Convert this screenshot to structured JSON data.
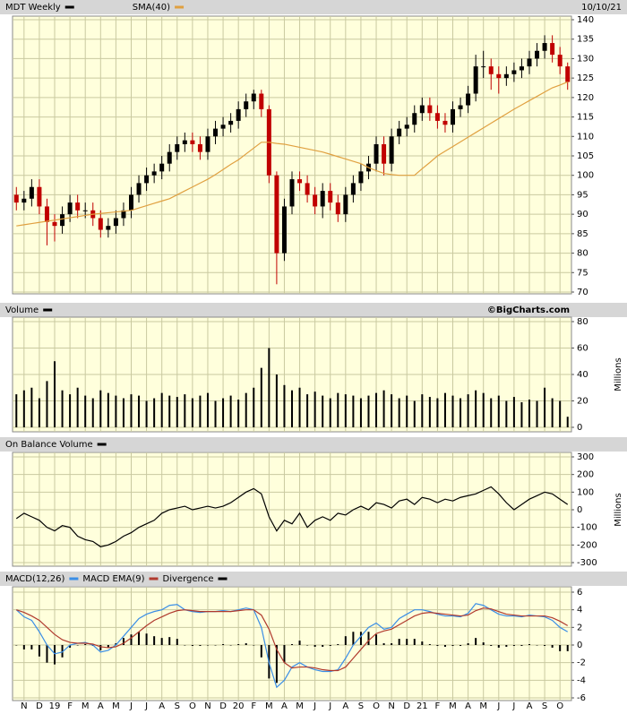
{
  "chart_data": [
    {
      "type": "candlestick",
      "date": "10/10/21",
      "ylim": [
        70,
        140
      ],
      "yticks": [
        70,
        75,
        80,
        85,
        90,
        95,
        100,
        105,
        110,
        115,
        120,
        125,
        130,
        135,
        140
      ],
      "grid": true,
      "series": [
        {
          "name": "MDT Weekly",
          "color": "#000000",
          "down_color": "#c00000",
          "open": [
            95,
            93,
            94,
            97,
            92,
            88,
            87,
            90,
            93,
            91,
            91,
            89,
            86,
            87,
            89,
            91,
            95,
            98,
            100,
            101,
            103,
            106,
            108,
            109,
            108,
            106,
            110,
            112,
            113,
            114,
            117,
            119,
            121,
            117,
            100,
            80,
            92,
            99,
            98,
            95,
            92,
            96,
            93,
            90,
            95,
            98,
            101,
            103,
            108,
            103,
            110,
            112,
            113,
            116,
            118,
            116,
            114,
            113,
            117,
            118,
            121,
            128,
            128,
            126,
            125,
            126,
            127,
            128,
            130,
            132,
            134,
            131,
            128
          ],
          "high": [
            97,
            96,
            99,
            99,
            94,
            90,
            92,
            95,
            95,
            93,
            93,
            91,
            89,
            91,
            93,
            97,
            100,
            102,
            103,
            105,
            108,
            110,
            111,
            111,
            110,
            112,
            114,
            115,
            116,
            119,
            121,
            122,
            122,
            118,
            101,
            94,
            101,
            101,
            100,
            97,
            98,
            98,
            95,
            97,
            100,
            103,
            105,
            110,
            110,
            112,
            114,
            115,
            118,
            120,
            120,
            118,
            116,
            119,
            120,
            123,
            131,
            132,
            130,
            128,
            128,
            129,
            130,
            132,
            134,
            136,
            136,
            133,
            129
          ],
          "low": [
            91,
            91,
            92,
            90,
            82,
            83,
            85,
            88,
            89,
            89,
            87,
            84,
            84,
            85,
            87,
            89,
            93,
            96,
            98,
            99,
            101,
            104,
            106,
            106,
            104,
            104,
            108,
            110,
            111,
            112,
            115,
            117,
            115,
            98,
            72,
            78,
            90,
            96,
            93,
            90,
            89,
            91,
            88,
            88,
            93,
            96,
            99,
            101,
            100,
            101,
            108,
            110,
            111,
            114,
            114,
            112,
            111,
            111,
            115,
            116,
            119,
            125,
            122,
            121,
            123,
            124,
            125,
            126,
            128,
            130,
            129,
            126,
            122
          ],
          "close": [
            93,
            94,
            97,
            92,
            88,
            87,
            90,
            93,
            91,
            91,
            89,
            86,
            87,
            89,
            91,
            95,
            98,
            100,
            101,
            103,
            106,
            108,
            109,
            108,
            106,
            110,
            112,
            113,
            114,
            117,
            119,
            121,
            117,
            100,
            80,
            92,
            99,
            98,
            95,
            92,
            96,
            93,
            90,
            95,
            98,
            101,
            103,
            108,
            103,
            110,
            112,
            113,
            116,
            118,
            116,
            114,
            113,
            117,
            118,
            121,
            128,
            128,
            126,
            125,
            126,
            127,
            128,
            130,
            132,
            134,
            131,
            128,
            124
          ]
        },
        {
          "name": "SMA(40)",
          "color": "#e0a040",
          "values": [
            87,
            87.3,
            87.6,
            87.9,
            88.2,
            88.5,
            88.8,
            89.1,
            89.4,
            89.7,
            90,
            90.2,
            90.4,
            90.6,
            90.8,
            91,
            91.6,
            92.2,
            92.8,
            93.4,
            94,
            95,
            96,
            97,
            98,
            99,
            100.2,
            101.5,
            102.8,
            104,
            105.5,
            107,
            108.5,
            108.5,
            108.2,
            108,
            107.6,
            107.2,
            106.8,
            106.4,
            106,
            105.4,
            104.8,
            104.2,
            103.6,
            103,
            102,
            101.2,
            100.5,
            100.2,
            100,
            100,
            100,
            101.7,
            103.3,
            105,
            106.2,
            107.4,
            108.6,
            109.8,
            111,
            112.2,
            113.4,
            114.6,
            115.8,
            117,
            118.1,
            119.2,
            120.3,
            121.4,
            122.5,
            123.2,
            124
          ]
        }
      ]
    },
    {
      "type": "bar",
      "source": "©BigCharts.com",
      "y_label": "Millions",
      "ylim": [
        0,
        80
      ],
      "yticks": [
        0,
        20,
        40,
        60,
        80
      ],
      "grid": true,
      "series": [
        {
          "name": "Volume",
          "color": "#000000",
          "values": [
            25,
            28,
            30,
            22,
            35,
            50,
            28,
            25,
            30,
            24,
            22,
            28,
            26,
            24,
            22,
            25,
            24,
            20,
            22,
            26,
            24,
            23,
            25,
            22,
            24,
            26,
            20,
            22,
            24,
            21,
            26,
            30,
            45,
            60,
            40,
            32,
            28,
            30,
            25,
            27,
            24,
            22,
            26,
            25,
            24,
            22,
            24,
            26,
            28,
            25,
            22,
            24,
            20,
            25,
            23,
            22,
            26,
            24,
            22,
            25,
            28,
            26,
            22,
            24,
            20,
            23,
            19,
            21,
            20,
            30,
            22,
            20,
            8
          ]
        }
      ]
    },
    {
      "type": "line",
      "y_label": "Millions",
      "ylim": [
        -300,
        300
      ],
      "yticks": [
        -300,
        -200,
        -100,
        0,
        100,
        200,
        300
      ],
      "grid": true,
      "series": [
        {
          "name": "On Balance Volume",
          "color": "#000000",
          "values": [
            -50,
            -20,
            -40,
            -60,
            -100,
            -120,
            -90,
            -100,
            -150,
            -170,
            -180,
            -210,
            -200,
            -180,
            -150,
            -130,
            -100,
            -80,
            -60,
            -20,
            0,
            10,
            20,
            0,
            10,
            20,
            10,
            20,
            40,
            70,
            100,
            120,
            90,
            -40,
            -120,
            -60,
            -80,
            -20,
            -100,
            -60,
            -40,
            -60,
            -20,
            -30,
            0,
            20,
            0,
            40,
            30,
            10,
            50,
            60,
            30,
            70,
            60,
            40,
            60,
            50,
            70,
            80,
            90,
            110,
            130,
            90,
            40,
            0,
            30,
            60,
            80,
            100,
            90,
            60,
            30
          ]
        }
      ]
    },
    {
      "type": "macd",
      "ylim": [
        -6,
        6
      ],
      "yticks": [
        -6,
        -4,
        -2,
        0,
        2,
        4,
        6
      ],
      "grid": true,
      "categories": [
        null,
        "N",
        null,
        "D",
        null,
        "19",
        null,
        "F",
        null,
        "M",
        null,
        "A",
        null,
        "M",
        null,
        "J",
        null,
        "J",
        null,
        "A",
        null,
        "S",
        null,
        "O",
        null,
        "N",
        null,
        "D",
        null,
        "20",
        null,
        "F",
        null,
        "M",
        null,
        "A",
        null,
        "M",
        null,
        "J",
        null,
        "J",
        null,
        "A",
        null,
        "S",
        null,
        "O",
        null,
        "N",
        null,
        "D",
        null,
        "21",
        null,
        "F",
        null,
        "M",
        null,
        "A",
        null,
        "M",
        null,
        "J",
        null,
        "J",
        null,
        "A",
        null,
        "S",
        null,
        "O",
        null
      ],
      "series": [
        {
          "name": "MACD(12,26)",
          "color": "#3a8ee6",
          "values": [
            4,
            3.2,
            2.8,
            1.5,
            0,
            -1,
            -0.8,
            0,
            0.2,
            0.3,
            0,
            -0.8,
            -0.6,
            0,
            1,
            2,
            3,
            3.5,
            3.8,
            4,
            4.5,
            4.6,
            4,
            3.8,
            3.7,
            3.8,
            3.8,
            3.9,
            3.8,
            4,
            4.2,
            4,
            2,
            -2,
            -4.8,
            -4,
            -2.5,
            -2,
            -2.5,
            -2.8,
            -3,
            -3,
            -2.8,
            -1.5,
            0,
            1,
            2,
            2.5,
            1.8,
            2,
            3,
            3.5,
            4,
            4,
            3.8,
            3.5,
            3.3,
            3.3,
            3.2,
            3.6,
            4.7,
            4.5,
            4,
            3.5,
            3.3,
            3.3,
            3.2,
            3.4,
            3.3,
            3.2,
            2.8,
            2,
            1.5
          ]
        },
        {
          "name": "MACD EMA(9)",
          "color": "#b03a2e",
          "values": [
            4,
            3.7,
            3.3,
            2.8,
            2,
            1.2,
            0.6,
            0.3,
            0.2,
            0.2,
            0.1,
            -0.2,
            -0.3,
            -0.2,
            0.2,
            0.8,
            1.5,
            2.2,
            2.8,
            3.2,
            3.6,
            3.9,
            4,
            3.9,
            3.8,
            3.8,
            3.8,
            3.8,
            3.8,
            3.9,
            4,
            4,
            3.4,
            1.8,
            -0.5,
            -2,
            -2.6,
            -2.5,
            -2.5,
            -2.6,
            -2.8,
            -2.9,
            -2.9,
            -2.5,
            -1.5,
            -0.5,
            0.5,
            1.3,
            1.6,
            1.8,
            2.3,
            2.8,
            3.3,
            3.6,
            3.7,
            3.6,
            3.5,
            3.4,
            3.3,
            3.4,
            3.9,
            4.2,
            4.1,
            3.8,
            3.5,
            3.4,
            3.3,
            3.3,
            3.3,
            3.3,
            3.1,
            2.7,
            2.2
          ]
        },
        {
          "name": "Divergence",
          "color": "#000000",
          "values": [
            0,
            -0.5,
            -0.5,
            -1.3,
            -2,
            -2.2,
            -1.4,
            -0.3,
            0,
            0.1,
            -0.1,
            -0.6,
            -0.3,
            0.2,
            0.8,
            1.2,
            1.5,
            1.3,
            1,
            0.8,
            0.9,
            0.7,
            0,
            -0.1,
            -0.1,
            0,
            0,
            0.1,
            0,
            0.1,
            0.2,
            0,
            -1.4,
            -3.8,
            -4.3,
            -2,
            0.1,
            0.5,
            0,
            -0.2,
            -0.2,
            -0.1,
            0.1,
            1,
            1.5,
            1.5,
            1.5,
            1.2,
            0.2,
            0.2,
            0.7,
            0.7,
            0.7,
            0.4,
            0.1,
            -0.1,
            -0.2,
            -0.1,
            -0.1,
            0.2,
            0.8,
            0.3,
            -0.1,
            -0.3,
            -0.2,
            -0.1,
            -0.1,
            0.1,
            0,
            -0.1,
            -0.3,
            -0.7,
            -0.7
          ]
        }
      ]
    }
  ]
}
